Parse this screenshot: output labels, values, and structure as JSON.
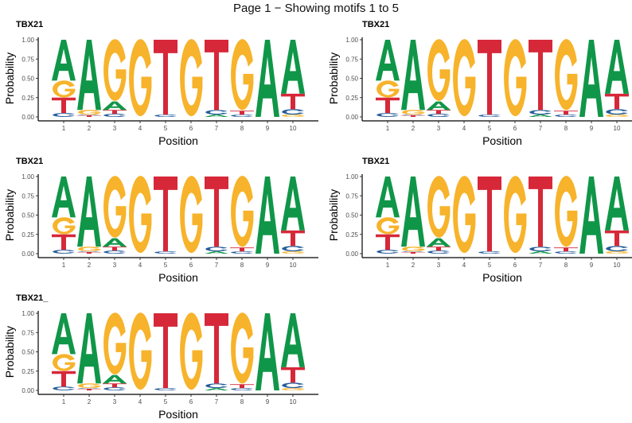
{
  "page_title": "Page 1 − Showing motifs 1 to 5",
  "colors": {
    "A": "#109648",
    "C": "#255C99",
    "G": "#F7B32B",
    "T": "#D62839"
  },
  "chart_data": [
    {
      "type": "sequence-logo",
      "title": "TBX21",
      "xlabel": "Position",
      "ylabel": "Probability",
      "ylim": [
        0,
        1
      ],
      "yticks": [
        "0.00",
        "0.25",
        "0.50",
        "0.75",
        "1.00"
      ],
      "positions": [
        1,
        2,
        3,
        4,
        5,
        6,
        7,
        8,
        9,
        10
      ],
      "matrix": [
        {
          "C": 0.05,
          "T": 0.2,
          "G": 0.22,
          "A": 0.53
        },
        {
          "T": 0.02,
          "C": 0.01,
          "G": 0.06,
          "A": 0.91
        },
        {
          "C": 0.04,
          "T": 0.05,
          "A": 0.11,
          "G": 0.8
        },
        {
          "G": 1.0
        },
        {
          "C": 0.03,
          "T": 0.97
        },
        {
          "G": 1.0
        },
        {
          "A": 0.03,
          "C": 0.06,
          "T": 0.91
        },
        {
          "C": 0.03,
          "T": 0.05,
          "G": 0.92
        },
        {
          "A": 1.0
        },
        {
          "G": 0.03,
          "C": 0.07,
          "T": 0.2,
          "A": 0.7
        }
      ]
    },
    {
      "type": "sequence-logo",
      "title": "TBX21",
      "xlabel": "Position",
      "ylabel": "Probability",
      "ylim": [
        0,
        1
      ],
      "yticks": [
        "0.00",
        "0.25",
        "0.50",
        "0.75",
        "1.00"
      ],
      "positions": [
        1,
        2,
        3,
        4,
        5,
        6,
        7,
        8,
        9,
        10
      ],
      "matrix": [
        {
          "C": 0.05,
          "T": 0.2,
          "G": 0.22,
          "A": 0.53
        },
        {
          "T": 0.02,
          "C": 0.01,
          "G": 0.06,
          "A": 0.91
        },
        {
          "C": 0.04,
          "T": 0.05,
          "A": 0.11,
          "G": 0.8
        },
        {
          "G": 1.0
        },
        {
          "C": 0.03,
          "T": 0.97
        },
        {
          "G": 1.0
        },
        {
          "A": 0.03,
          "C": 0.06,
          "T": 0.91
        },
        {
          "C": 0.03,
          "T": 0.05,
          "G": 0.92
        },
        {
          "A": 1.0
        },
        {
          "G": 0.03,
          "C": 0.07,
          "T": 0.2,
          "A": 0.7
        }
      ]
    },
    {
      "type": "sequence-logo",
      "title": "TBX21",
      "xlabel": "Position",
      "ylabel": "Probability",
      "ylim": [
        0,
        1
      ],
      "yticks": [
        "0.00",
        "0.25",
        "0.50",
        "0.75",
        "1.00"
      ],
      "positions": [
        1,
        2,
        3,
        4,
        5,
        6,
        7,
        8,
        9,
        10
      ],
      "matrix": [
        {
          "C": 0.05,
          "T": 0.2,
          "G": 0.22,
          "A": 0.53
        },
        {
          "T": 0.02,
          "C": 0.01,
          "G": 0.06,
          "A": 0.91
        },
        {
          "C": 0.04,
          "T": 0.05,
          "A": 0.11,
          "G": 0.8
        },
        {
          "G": 1.0
        },
        {
          "C": 0.03,
          "T": 0.97
        },
        {
          "G": 1.0
        },
        {
          "A": 0.03,
          "C": 0.06,
          "T": 0.91
        },
        {
          "C": 0.03,
          "T": 0.05,
          "G": 0.92
        },
        {
          "A": 1.0
        },
        {
          "G": 0.03,
          "C": 0.07,
          "T": 0.2,
          "A": 0.7
        }
      ]
    },
    {
      "type": "sequence-logo",
      "title": "TBX21",
      "xlabel": "Position",
      "ylabel": "Probability",
      "ylim": [
        0,
        1
      ],
      "yticks": [
        "0.00",
        "0.25",
        "0.50",
        "0.75",
        "1.00"
      ],
      "positions": [
        1,
        2,
        3,
        4,
        5,
        6,
        7,
        8,
        9,
        10
      ],
      "matrix": [
        {
          "C": 0.05,
          "T": 0.2,
          "G": 0.22,
          "A": 0.53
        },
        {
          "T": 0.02,
          "C": 0.01,
          "G": 0.06,
          "A": 0.91
        },
        {
          "C": 0.04,
          "T": 0.05,
          "A": 0.11,
          "G": 0.8
        },
        {
          "G": 1.0
        },
        {
          "C": 0.03,
          "T": 0.97
        },
        {
          "G": 1.0
        },
        {
          "A": 0.03,
          "C": 0.06,
          "T": 0.91
        },
        {
          "C": 0.03,
          "T": 0.05,
          "G": 0.92
        },
        {
          "A": 1.0
        },
        {
          "G": 0.03,
          "C": 0.07,
          "T": 0.2,
          "A": 0.7
        }
      ]
    },
    {
      "type": "sequence-logo",
      "title": "TBX21_",
      "xlabel": "Position",
      "ylabel": "Probability",
      "ylim": [
        0,
        1
      ],
      "yticks": [
        "0.00",
        "0.25",
        "0.50",
        "0.75",
        "1.00"
      ],
      "positions": [
        1,
        2,
        3,
        4,
        5,
        6,
        7,
        8,
        9,
        10
      ],
      "matrix": [
        {
          "C": 0.05,
          "T": 0.2,
          "G": 0.22,
          "A": 0.53
        },
        {
          "T": 0.02,
          "C": 0.01,
          "G": 0.06,
          "A": 0.91
        },
        {
          "C": 0.04,
          "T": 0.05,
          "A": 0.11,
          "G": 0.8
        },
        {
          "G": 1.0
        },
        {
          "C": 0.03,
          "T": 0.97
        },
        {
          "G": 1.0
        },
        {
          "A": 0.03,
          "C": 0.06,
          "T": 0.91
        },
        {
          "C": 0.03,
          "T": 0.05,
          "G": 0.92
        },
        {
          "A": 1.0
        },
        {
          "G": 0.03,
          "C": 0.07,
          "T": 0.2,
          "A": 0.7
        }
      ]
    }
  ]
}
